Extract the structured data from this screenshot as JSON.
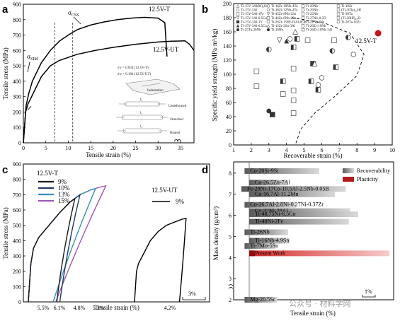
{
  "watermark": "公众号 · 材料学网",
  "chart_data": [
    {
      "panel": "a",
      "type": "line",
      "xlabel": "Tensile strain (%)",
      "ylabel": "Tensile stress (MPa)",
      "xlim": [
        0,
        38
      ],
      "ylim": [
        0,
        900
      ],
      "xticks": [
        0,
        5,
        10,
        15,
        20,
        25,
        30,
        35
      ],
      "yticks": [
        0,
        100,
        200,
        300,
        400,
        500,
        600,
        700,
        800,
        900
      ],
      "series": [
        {
          "name": "12.5V-T",
          "color": "#000000",
          "x": [
            0,
            0.6,
            1.2,
            2,
            4,
            6,
            8,
            10,
            12,
            15,
            18,
            21,
            24,
            27,
            30,
            31.5,
            32
          ],
          "y": [
            0,
            240,
            320,
            400,
            520,
            600,
            660,
            700,
            735,
            765,
            785,
            800,
            810,
            815,
            810,
            780,
            560
          ]
        },
        {
          "name": "12.5V-UT",
          "color": "#000000",
          "x": [
            0,
            0.5,
            1,
            2,
            4,
            6,
            8,
            12,
            16,
            20,
            25,
            30,
            33,
            36,
            37,
            38
          ],
          "y": [
            0,
            200,
            250,
            310,
            430,
            500,
            535,
            575,
            600,
            620,
            640,
            655,
            660,
            662,
            640,
            600
          ]
        }
      ],
      "dashed_x": [
        7,
        11
      ],
      "annotations": [
        {
          "text": "σ",
          "sub": "CSS"
        },
        {
          "text": "σ",
          "sub": "SIM"
        },
        {
          "text": "d ε  = 0.034 (12.5V-T)"
        },
        {
          "text": "d ε  = 0.186 (12.5V-UT)"
        },
        {
          "text": "Indentation"
        },
        {
          "text": "Undeformed"
        },
        {
          "text": "Stretched"
        },
        {
          "text": "Heated"
        },
        {
          "text": "l₀"
        },
        {
          "text": "l₁"
        },
        {
          "text": "l₂"
        }
      ]
    },
    {
      "panel": "b",
      "type": "scatter",
      "xlabel": "Recoverable strain (%)",
      "ylabel": "Specific yield strength (MPa·m³/kg)",
      "xlim": [
        1,
        10
      ],
      "ylim": [
        0,
        200
      ],
      "xticks": [
        1,
        2,
        3,
        4,
        5,
        6,
        7,
        8,
        9,
        10
      ],
      "yticks": [
        0,
        20,
        40,
        60,
        80,
        100,
        120,
        140,
        160,
        180,
        200
      ],
      "highlight": {
        "name": "12.5V-T",
        "x": 9.2,
        "y": 158,
        "color": "#c0151d"
      },
      "legend": [
        "Ti-15V-3Al(M)₃Sn",
        "Ti-15V-3Al",
        "Ti-15V-3Al-1Fe",
        "Ti-15V-3Al-0.5Ca",
        "Ti-15V-3Al-1Y",
        "Ti-15V-3Al-0.5Ca",
        "Ti-25Ta-20Nb",
        "Ti-16Zr-10Nb-4Ta",
        "Ti-18Zr-12Nb-4Ta",
        "Ti-45Zr-8Nb-2Sn",
        "Ti-46Zr-8Nb-2Sn",
        "Ti-26Zr-15Hf-10Al-6Nb",
        "Ti-12Zr-2Sn-3Al",
        "Ti-10Nb",
        "Ti-20Nb",
        "Ti-26Nb",
        "Ti-22Nb",
        "Ti-27Nb-0.5O",
        "Ti-22Nb-6Zr",
        "Ti-26Zr-10Nb",
        "Ti-26Zr-10Nb-3Al",
        "Ti-10Zr",
        "(Ti-30Ta)₂₅Hf",
        "Ti-30Ta",
        "(Ti-30Hf)₂₅Zr",
        "Ti-20Ta-10Zr"
      ],
      "points": [
        {
          "x": 2.3,
          "y": 104,
          "m": "sq"
        },
        {
          "x": 2.3,
          "y": 83,
          "m": "sq"
        },
        {
          "x": 3.0,
          "y": 135,
          "m": "hc"
        },
        {
          "x": 3.0,
          "y": 48,
          "m": "fc"
        },
        {
          "x": 3.2,
          "y": 43,
          "m": "fs"
        },
        {
          "x": 3.6,
          "y": 148,
          "m": "td"
        },
        {
          "x": 3.8,
          "y": 90,
          "m": "hs"
        },
        {
          "x": 3.8,
          "y": 72,
          "m": "sq"
        },
        {
          "x": 4.0,
          "y": 147,
          "m": "ft"
        },
        {
          "x": 4.2,
          "y": 150,
          "m": "oc"
        },
        {
          "x": 4.4,
          "y": 138,
          "m": "hs"
        },
        {
          "x": 4.4,
          "y": 108,
          "m": "sq"
        },
        {
          "x": 4.4,
          "y": 77,
          "m": "sq"
        },
        {
          "x": 4.4,
          "y": 63,
          "m": "sq"
        },
        {
          "x": 4.4,
          "y": 45,
          "m": "sq"
        },
        {
          "x": 4.5,
          "y": 160,
          "m": "tu"
        },
        {
          "x": 4.6,
          "y": 150,
          "m": "hs"
        },
        {
          "x": 5.2,
          "y": 148,
          "m": "sq"
        },
        {
          "x": 5.4,
          "y": 90,
          "m": "hs"
        },
        {
          "x": 5.5,
          "y": 115,
          "m": "fs"
        },
        {
          "x": 5.6,
          "y": 115,
          "m": "tu"
        },
        {
          "x": 5.8,
          "y": 78,
          "m": "hs"
        },
        {
          "x": 6.0,
          "y": 95,
          "m": "oc"
        },
        {
          "x": 5.8,
          "y": 85,
          "m": "oc"
        },
        {
          "x": 6.7,
          "y": 148,
          "m": "sq"
        },
        {
          "x": 6.6,
          "y": 133,
          "m": "hc"
        },
        {
          "x": 6.8,
          "y": 110,
          "m": "hs"
        },
        {
          "x": 7.5,
          "y": 152,
          "m": "hc"
        },
        {
          "x": 7.8,
          "y": 128,
          "m": "oc"
        }
      ]
    },
    {
      "panel": "c",
      "type": "line",
      "xlabel": "Tensile strain (%)",
      "ylabel": "Tensile stress (MPa)",
      "ylim": [
        0,
        900
      ],
      "yticks": [
        0,
        100,
        200,
        300,
        400,
        500,
        600,
        700,
        800,
        900
      ],
      "scale_bar": "3%",
      "legend_title_left": "12.5V-T",
      "legend_title_right": "12.5V-UT",
      "series": [
        {
          "name": "9%",
          "color": "#1a1a1a"
        },
        {
          "name": "10%",
          "color": "#203864"
        },
        {
          "name": "13%",
          "color": "#3a8fb7"
        },
        {
          "name": "15%",
          "color": "#9b59b6"
        },
        {
          "name": "9%",
          "color": "#000000",
          "group": "12.5V-UT"
        }
      ],
      "residual_labels": [
        {
          "text": "5.5%",
          "color": "#222222"
        },
        {
          "text": "6.1%",
          "color": "#203864"
        },
        {
          "text": "4.8%",
          "color": "#3a8fb7"
        },
        {
          "text": "5.3%",
          "color": "#9b59b6"
        },
        {
          "text": "4.2%",
          "color": "#222222"
        }
      ]
    },
    {
      "panel": "d",
      "type": "bar",
      "xlabel": "Tensile strain (%)",
      "ylabel": "Mass density (g/cm³)",
      "ylim": [
        2,
        8.5
      ],
      "yticks": [
        2,
        3,
        4,
        5,
        6,
        7,
        8
      ],
      "scale_bar": "1%",
      "legend": [
        "Recoverability",
        "Plasticity"
      ],
      "bars": [
        {
          "label": "Co-20Si-9Si",
          "density": 8.1,
          "start": -3,
          "end": 45
        },
        {
          "label": "Co-26.5Zn-7Al",
          "density": 7.55,
          "start": 0,
          "end": 25
        },
        {
          "label": "Fe-28Ni-17Co-10.5Al-2.5Nb-0.05B",
          "density": 7.25,
          "start": -5,
          "end": 62
        },
        {
          "label": "Co-16.7Al-11.2Mn",
          "density": 7.0,
          "start": 0,
          "end": 55
        },
        {
          "label": "Co-26.7Al-2.8Ni-0.27Ni-0.37Zr",
          "density": 6.5,
          "start": -3,
          "end": 30
        },
        {
          "label": "Cu-32Ni-28Al",
          "density": 6.2,
          "start": 0,
          "end": 65
        },
        {
          "label": "Ti-48.75Ni-6.5Co",
          "density": 6.05,
          "start": 0,
          "end": 70
        },
        {
          "label": "Ti-48Ni-2Fe",
          "density": 5.7,
          "start": 0,
          "end": 64
        },
        {
          "label": "Ti-26Nb",
          "density": 5.2,
          "start": -3,
          "end": 25
        },
        {
          "label": "Ti-16Nb-4.9Sn",
          "density": 4.8,
          "start": 0,
          "end": 26
        },
        {
          "label": "Ti-7Mo-5Sn",
          "density": 4.55,
          "start": -3,
          "end": 17
        },
        {
          "label": "Present Work",
          "density": 4.2,
          "start": 0,
          "end": 90,
          "highlight": true
        },
        {
          "label": "Mg-20.5Sc",
          "density": 2.0,
          "start": -3,
          "end": 18
        }
      ]
    }
  ]
}
